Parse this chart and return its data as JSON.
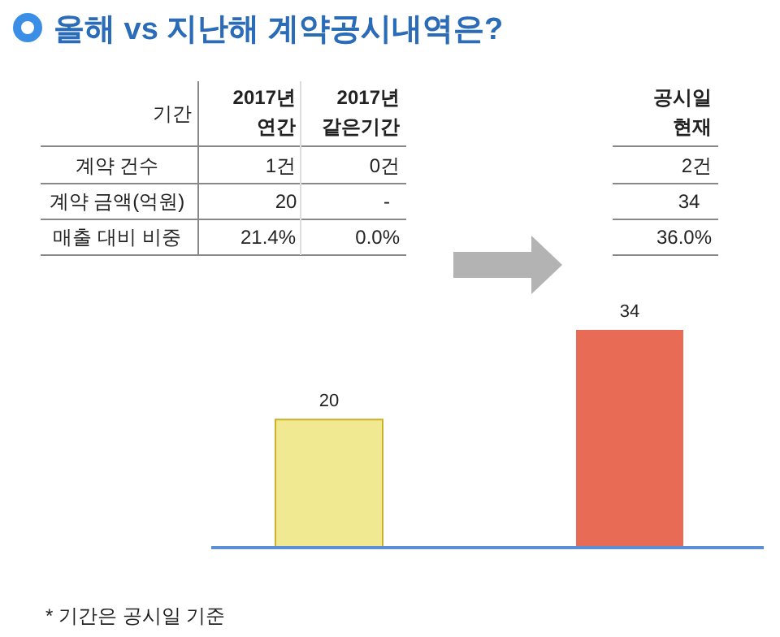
{
  "chart_data": {
    "type": "bar",
    "title": "올해 vs 지난해 계약공시내역은?",
    "categories": [
      null,
      null
    ],
    "values": [
      20,
      34
    ],
    "colors": [
      "#f0e991",
      "#e86b55"
    ],
    "data_labels": true,
    "annotations": [
      "기간",
      "2017년",
      "연간",
      "2017년",
      "같은기간",
      "공시일",
      "현재",
      "계약 건수",
      "1건",
      "0건",
      "2건",
      "계약 금액(억원)",
      "20",
      "-",
      "34",
      "매출 대비 비중",
      "21.4%",
      "0.0%",
      "36.0%",
      "* 기간은 공시일 기준"
    ]
  }
}
